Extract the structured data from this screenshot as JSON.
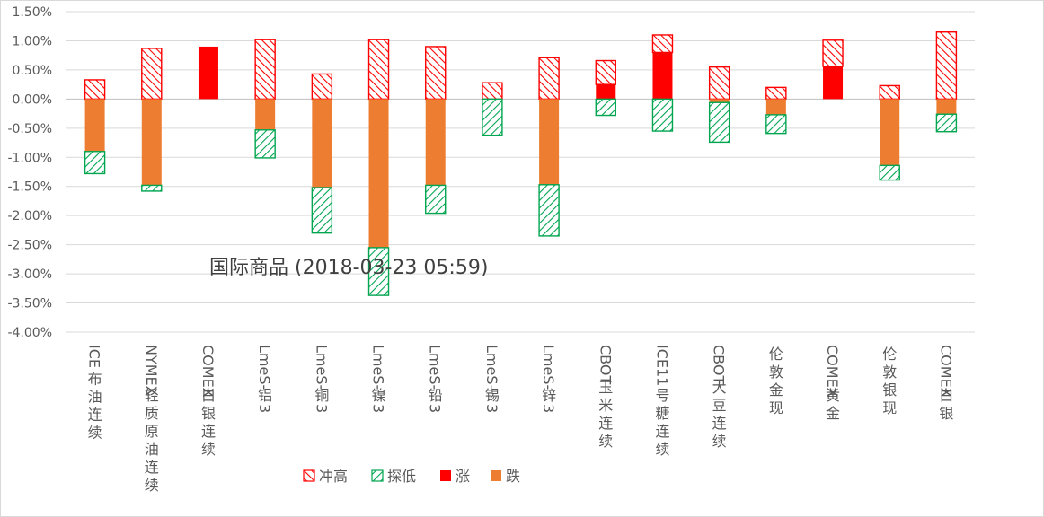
{
  "chart_data": {
    "type": "bar",
    "title": "国际商品 (2018-03-23 05:59)",
    "xlabel": "",
    "ylabel": "",
    "ylim": [
      -4.0,
      1.5
    ],
    "yticks": [
      "1.50%",
      "1.00%",
      "0.50%",
      "0.00%",
      "-0.50%",
      "-1.00%",
      "-1.50%",
      "-2.00%",
      "-2.50%",
      "-3.00%",
      "-3.50%",
      "-4.00%"
    ],
    "ytick_values": [
      1.5,
      1.0,
      0.5,
      0.0,
      -0.5,
      -1.0,
      -1.5,
      -2.0,
      -2.5,
      -3.0,
      -3.5,
      -4.0
    ],
    "categories": [
      "ICE布油连续",
      "NYMEX轻质原油连续",
      "COMEX白银连续",
      "LmeS-铝3",
      "LmeS-铜3",
      "LmeS-镍3",
      "LmeS-铅3",
      "LmeS-锡3",
      "LmeS-锌3",
      "CBOT玉米连续",
      "ICE11号糖连续",
      "CBOT大豆连续",
      "伦敦金现",
      "COMEX黄金",
      "伦敦银现",
      "COMEX白银"
    ],
    "series": [
      {
        "name": "冲高",
        "color": "#ff0000",
        "pattern": "hatch-red",
        "values": [
          0.33,
          0.87,
          0.0,
          1.02,
          0.43,
          1.02,
          0.9,
          0.28,
          0.71,
          0.41,
          0.3,
          0.55,
          0.2,
          0.45,
          0.23,
          1.15
        ]
      },
      {
        "name": "探低",
        "color": "#00a550",
        "pattern": "hatch-green",
        "values": [
          -0.38,
          -0.1,
          0.0,
          -0.48,
          -0.78,
          -0.82,
          -0.48,
          -0.62,
          -0.88,
          -0.28,
          -0.55,
          -0.68,
          -0.32,
          0.0,
          -0.25,
          -0.3
        ]
      },
      {
        "name": "涨",
        "color": "#ff0000",
        "pattern": "solid",
        "values": [
          0.0,
          0.0,
          0.9,
          0.0,
          0.0,
          0.0,
          0.0,
          0.0,
          0.0,
          0.25,
          0.8,
          0.0,
          0.0,
          0.56,
          0.0,
          0.0
        ]
      },
      {
        "name": "跌",
        "color": "#ed7d31",
        "pattern": "solid",
        "values": [
          -0.9,
          -1.48,
          0.0,
          -0.53,
          -1.52,
          -2.55,
          -1.48,
          0.0,
          -1.47,
          0.0,
          0.0,
          -0.06,
          -0.27,
          0.0,
          -1.14,
          -0.26
        ]
      }
    ],
    "legend": [
      "冲高",
      "探低",
      "涨",
      "跌"
    ],
    "legend_position": "bottom",
    "grid": true
  }
}
